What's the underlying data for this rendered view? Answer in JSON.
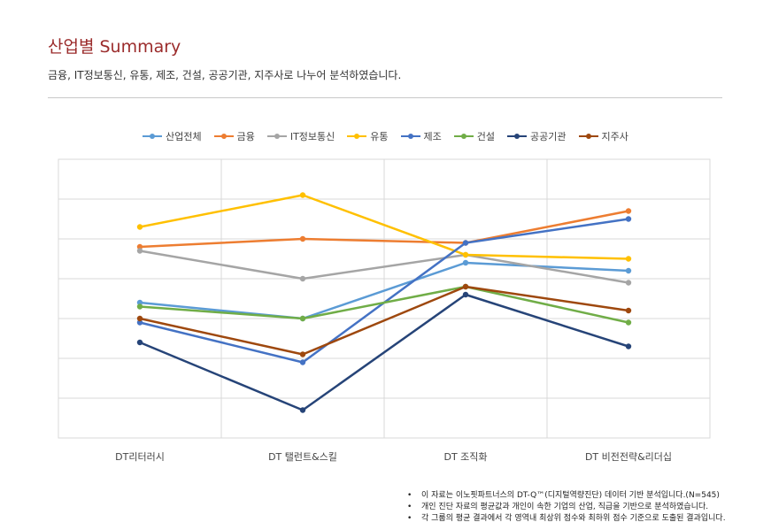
{
  "header": {
    "title": "산업별 Summary",
    "subtitle": "금융, IT정보통신, 유통, 제조, 건설, 공공기관, 지주사로 나누어 분석하였습니다."
  },
  "chart_data": {
    "type": "line",
    "title": "",
    "xlabel": "",
    "ylabel": "",
    "categories": [
      "DT리터러시",
      "DT 탤런트&스킬",
      "DT 조직화",
      "DT 비전전략&리더십"
    ],
    "ylim": [
      0,
      7
    ],
    "y_ticks_labeled": false,
    "grid": true,
    "legend_position": "top",
    "series": [
      {
        "name": "산업전체",
        "color": "#5b9bd5",
        "values": [
          3.4,
          3.0,
          4.4,
          4.2
        ]
      },
      {
        "name": "금융",
        "color": "#ed7d31",
        "values": [
          4.8,
          5.0,
          4.9,
          5.7
        ]
      },
      {
        "name": "IT정보통신",
        "color": "#a5a5a5",
        "values": [
          4.7,
          4.0,
          4.6,
          3.9
        ]
      },
      {
        "name": "유통",
        "color": "#ffc000",
        "values": [
          5.3,
          6.1,
          4.6,
          4.5
        ]
      },
      {
        "name": "제조",
        "color": "#4472c4",
        "values": [
          2.9,
          1.9,
          4.9,
          5.5
        ]
      },
      {
        "name": "건설",
        "color": "#70ad47",
        "values": [
          3.3,
          3.0,
          3.8,
          2.9
        ]
      },
      {
        "name": "공공기관",
        "color": "#264478",
        "values": [
          2.4,
          0.7,
          3.6,
          2.3
        ]
      },
      {
        "name": "지주사",
        "color": "#9e480e",
        "values": [
          3.0,
          2.1,
          3.8,
          3.2
        ]
      }
    ]
  },
  "notes": [
    {
      "bullet": "•",
      "text": "이 자료는 이노핏파트너스의 DT-Q™(디지털역량진단) 데이터 기반 분석입니다.(N=545)"
    },
    {
      "bullet": "•",
      "text": "개인 진단 자료의 평균값과 개인이 속한 기업의 산업, 직급을 기반으로 분석하였습니다."
    },
    {
      "bullet": "•",
      "text": "각 그룹의 평균 결과에서 각 영역내 최상위 점수와 최하위 점수 기준으로 도출된 결과입니다."
    }
  ]
}
